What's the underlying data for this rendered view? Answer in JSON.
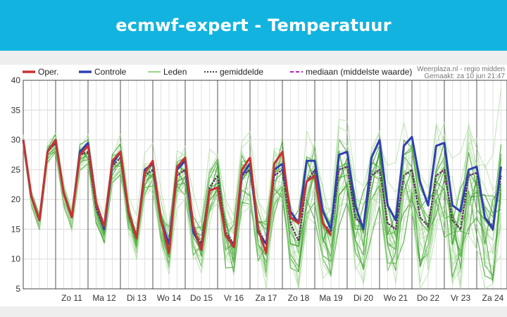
{
  "header": {
    "title": "ecmwf-expert - Temperatuur"
  },
  "chart_data": {
    "type": "line",
    "title": "",
    "xlabel": "",
    "ylabel": "",
    "ylim": [
      5,
      40
    ],
    "yticks": [
      5,
      10,
      15,
      20,
      25,
      30,
      35,
      40
    ],
    "grid": true,
    "source": "Weerplaza.nl - regio midden",
    "made": "Gemaakt: za 10 jun 21:47",
    "legend": {
      "position": "top",
      "items": [
        {
          "label": "Oper.",
          "color": "#c83232",
          "style": "solid"
        },
        {
          "label": "Controle",
          "color": "#3040b0",
          "style": "solid"
        },
        {
          "label": "Leden",
          "color": "#9ad48a",
          "style": "solid"
        },
        {
          "label": "gemiddelde",
          "color": "#404040",
          "style": "dotted"
        },
        {
          "label": "mediaan (middelste waarde)",
          "color": "#c020c0",
          "style": "dashed"
        }
      ]
    },
    "day_labels": [
      "Zo 11",
      "Ma 12",
      "Di 13",
      "Wo 14",
      "Do 15",
      "Vr 16",
      "Za 17",
      "Zo 18",
      "Ma 19",
      "Di 20",
      "Wo 21",
      "Do 22",
      "Vr 23",
      "Za 24"
    ],
    "x_step_hours": 6,
    "x_start": "za 10 jun 00:00",
    "series": [
      {
        "name": "Oper.",
        "color": "#c83232",
        "values": [
          30,
          20.5,
          16.5,
          28,
          30,
          21,
          17,
          27.5,
          29,
          19.5,
          15.5,
          26.5,
          28,
          18,
          13.5,
          24.5,
          26.5,
          16.5,
          11,
          25.5,
          27,
          15.5,
          11.5,
          21.5,
          22,
          14,
          12,
          25,
          27,
          15,
          11,
          26,
          28,
          17,
          16,
          23,
          24,
          16,
          14,
          null
        ]
      },
      {
        "name": "Controle",
        "color": "#3040b0",
        "values": [
          30,
          20.5,
          16.5,
          28,
          30,
          21,
          17,
          28,
          29.5,
          19.5,
          15,
          26,
          28,
          18,
          13.5,
          25,
          26,
          16.5,
          12.5,
          25,
          26.5,
          14.5,
          12,
          21.5,
          22,
          14,
          12,
          24,
          26,
          14.5,
          12.5,
          25,
          26,
          18,
          16,
          26.5,
          26.5,
          18,
          15,
          27.5,
          28,
          19,
          15,
          27,
          30,
          19,
          16.5,
          29,
          30.5,
          23,
          19,
          29,
          29.5,
          19,
          18,
          25,
          25.5,
          17,
          15,
          25.5
        ]
      },
      {
        "name": "gemiddelde",
        "color": "#404040",
        "values": [
          30,
          20.5,
          16.5,
          28,
          29.5,
          21,
          17,
          27.5,
          28,
          18.5,
          15,
          25.5,
          27,
          17.5,
          13.5,
          24,
          25,
          16.5,
          12.5,
          24,
          25,
          15,
          12.5,
          22,
          24,
          14.5,
          12.5,
          24,
          25,
          15,
          12.5,
          24,
          25,
          16,
          13,
          23,
          25,
          16,
          14.5,
          25,
          25.5,
          17,
          15.5,
          24,
          25,
          16,
          15,
          24,
          25,
          17,
          15.5,
          24,
          25,
          16.5,
          15,
          24,
          24.5,
          17,
          15.5,
          24
        ]
      },
      {
        "name": "mediaan (middelste waarde)",
        "color": "#c020c0",
        "values": [
          30,
          20.5,
          16.5,
          28,
          29.5,
          21,
          17,
          27.5,
          28,
          18.5,
          15,
          25.5,
          27,
          17.5,
          13.5,
          24,
          25,
          16.5,
          12.5,
          24,
          25,
          15,
          12.5,
          22,
          24,
          14.5,
          12.5,
          24,
          25,
          15,
          12.5,
          24,
          25,
          16,
          13,
          23,
          25,
          16,
          14.5,
          25,
          25.5,
          17,
          15.5,
          24,
          25,
          16,
          15,
          24,
          25,
          17,
          15.5,
          24,
          25,
          16.5,
          15,
          24,
          24.5,
          17,
          15.5,
          24
        ]
      }
    ]
  }
}
